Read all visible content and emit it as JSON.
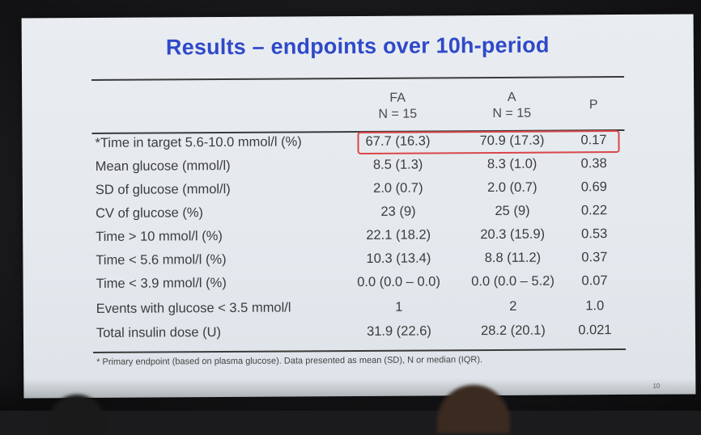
{
  "slide": {
    "title": "Results – endpoints over 10h-period",
    "columns": {
      "fa_line1": "FA",
      "fa_line2": "N = 15",
      "a_line1": "A",
      "a_line2": "N = 15",
      "p": "P"
    },
    "rows": [
      {
        "label": "*Time in target 5.6-10.0 mmol/l (%)",
        "fa": "67.7 (16.3)",
        "a": "70.9 (17.3)",
        "p": "0.17"
      },
      {
        "label": "Mean glucose (mmol/l)",
        "fa": "8.5 (1.3)",
        "a": "8.3 (1.0)",
        "p": "0.38"
      },
      {
        "label": "SD of glucose (mmol/l)",
        "fa": "2.0 (0.7)",
        "a": "2.0 (0.7)",
        "p": "0.69"
      },
      {
        "label": "CV of glucose (%)",
        "fa": "23 (9)",
        "a": "25 (9)",
        "p": "0.22"
      },
      {
        "label": "Time > 10 mmol/l (%)",
        "fa": "22.1 (18.2)",
        "a": "20.3 (15.9)",
        "p": "0.53"
      },
      {
        "label": "Time < 5.6 mmol/l (%)",
        "fa": "10.3 (13.4)",
        "a": "8.8 (11.2)",
        "p": "0.37"
      },
      {
        "label": "Time < 3.9 mmol/l (%)",
        "fa": "0.0 (0.0 – 0.0)",
        "a": "0.0 (0.0 – 5.2)",
        "p": "0.07"
      },
      {
        "label": "Events with glucose < 3.5 mmol/l",
        "fa": "1",
        "a": "2",
        "p": "1.0"
      },
      {
        "label": "Total insulin dose (U)",
        "fa": "31.9 (22.6)",
        "a": "28.2 (20.1)",
        "p": "0.021"
      }
    ],
    "footnote": "* Primary endpoint (based on plasma glucose). Data presented as mean (SD), N or median (IQR).",
    "page_number": "10",
    "colors": {
      "title": "#2f49c9",
      "highlight_border": "#d9464a",
      "slide_background": "#e7ebef"
    }
  }
}
